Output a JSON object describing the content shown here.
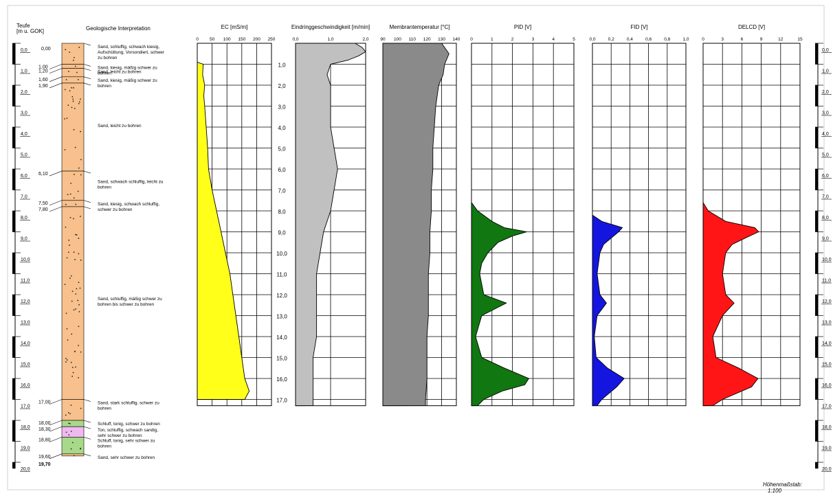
{
  "header": {
    "depth_title": "Teufe",
    "depth_unit": "[m u. GOK]",
    "geo_title": "Geologische Interpretation"
  },
  "scale_note": {
    "label": "Höhenmaßstab:",
    "value": "1:100"
  },
  "depth_ticks": [
    "0,0",
    "1,0",
    "2,0",
    "3,0",
    "4,0",
    "5,0",
    "6,0",
    "7,0",
    "8,0",
    "9,0",
    "10,0",
    "11,0",
    "12,0",
    "13,0",
    "14,0",
    "15,0",
    "16,0",
    "17,0",
    "18,0",
    "19,0",
    "20,0"
  ],
  "center_ticks": [
    "1,0",
    "2,0",
    "3,0",
    "4,0",
    "5,0",
    "6,0",
    "7,0",
    "8,0",
    "9,0",
    "10,0",
    "11,0",
    "12,0",
    "13,0",
    "14,0",
    "15,0",
    "16,0",
    "17,0"
  ],
  "layers": [
    {
      "top": "0,00",
      "bottom": "1,00",
      "desc": "Sand, schluffig, schwach kiesig, Aufschüttung, Vorsondiert, schwer zu bohren",
      "fill": "#f7c08c"
    },
    {
      "top": "1,00",
      "bottom": "1,20",
      "desc": "Sand, kiesig, mäßig schwer zu bohren",
      "fill": "#f7c08c"
    },
    {
      "top": "1,20",
      "bottom": "1,60",
      "desc": "Sand, leicht zu bohren",
      "fill": "#f7c08c"
    },
    {
      "top": "1,60",
      "bottom": "1,90",
      "desc": "Sand, kiesig, mäßig schwer zu bohren",
      "fill": "#f7c08c"
    },
    {
      "top": "1,90",
      "bottom": "6,10",
      "desc": "Sand, leicht zu bohren",
      "fill": "#f7c08c"
    },
    {
      "top": "6,10",
      "bottom": "7,50",
      "desc": "Sand, schwach schluffig, leicht zu bohren",
      "fill": "#f7c08c"
    },
    {
      "top": "7,50",
      "bottom": "7,80",
      "desc": "Sand, kiesig, schwach schluffig, schwer zu bohren",
      "fill": "#f7c08c"
    },
    {
      "top": "7,80",
      "bottom": "17,00",
      "desc": "Sand, schluffig, mäßig schwer zu bohren bis schwer zu bohren",
      "fill": "#f7c08c"
    },
    {
      "top": "17,00",
      "bottom": "18,00",
      "desc": "Sand, stark schluffig, schwer zu bohren",
      "fill": "#f7c08c"
    },
    {
      "top": "18,00",
      "bottom": "18,30",
      "desc": "Schluff, tonig, schwer zu bohren",
      "fill": "#a8d88a"
    },
    {
      "top": "18,30",
      "bottom": "18,80",
      "desc": "Ton, schluffig, schwach sandig, sehr schwer zu bohren",
      "fill": "#f0b8f0"
    },
    {
      "top": "18,80",
      "bottom": "19,60",
      "desc": "Schluff, tonig, sehr schwer zu bohren",
      "fill": "#a8d88a"
    },
    {
      "top": "19,60",
      "bottom": "19,70",
      "desc": "Sand, sehr schwer zu bohren",
      "fill": "#f7c08c"
    }
  ],
  "final_depth": "19,70",
  "colors": {
    "ec": "#ffff1a",
    "speed": "#c0c0c0",
    "temp": "#8a8a8a",
    "pid": "#117711",
    "fid": "#1515e0",
    "delcd": "#ff1515",
    "sand": "#f7c08c",
    "silt": "#a8d88a",
    "clay": "#f0b8f0"
  },
  "chart_data": [
    {
      "type": "area",
      "id": "ec",
      "title": "EC [mS/m]",
      "xlim": [
        0,
        250
      ],
      "xticks": [
        "0",
        "50",
        "100",
        "150",
        "200",
        "250"
      ],
      "depth": [
        0.9,
        1.0,
        1.5,
        2.0,
        2.5,
        3.0,
        4.0,
        5.0,
        6.0,
        7.0,
        8.0,
        9.0,
        10.0,
        11.0,
        12.0,
        13.0,
        14.0,
        15.0,
        16.0,
        16.6,
        17.0
      ],
      "values": [
        0,
        20,
        18,
        25,
        22,
        25,
        30,
        35,
        38,
        50,
        65,
        80,
        95,
        110,
        120,
        130,
        140,
        150,
        160,
        175,
        160
      ]
    },
    {
      "type": "area",
      "id": "speed",
      "title": "Eindringgeschwindigkeit [m/min]",
      "xlim": [
        0,
        2.0
      ],
      "xticks": [
        "0,0",
        "1,0",
        "2,0"
      ],
      "depth": [
        0.0,
        0.2,
        0.4,
        0.6,
        0.8,
        1.0,
        1.5,
        2.0,
        3.0,
        4.0,
        5.0,
        6.0,
        7.0,
        8.0,
        9.0,
        10.0,
        11.0,
        12.0,
        13.0,
        14.0,
        15.0,
        16.0,
        17.0,
        17.3
      ],
      "values": [
        1.7,
        1.9,
        2.0,
        1.8,
        1.5,
        1.0,
        0.9,
        1.0,
        1.0,
        1.0,
        1.1,
        1.2,
        1.1,
        1.0,
        0.8,
        0.7,
        0.6,
        0.6,
        0.6,
        0.6,
        0.5,
        0.5,
        0.5,
        0.5
      ]
    },
    {
      "type": "area",
      "id": "temp",
      "title": "Membrantemperatur [°C]",
      "xlim": [
        90,
        140
      ],
      "xticks": [
        "90",
        "100",
        "110",
        "120",
        "130",
        "140"
      ],
      "depth": [
        0.0,
        0.5,
        1.0,
        1.5,
        2.0,
        3.0,
        4.0,
        5.0,
        6.0,
        7.0,
        8.0,
        9.0,
        10.0,
        11.0,
        12.0,
        13.0,
        14.0,
        15.0,
        16.0,
        17.0,
        17.3
      ],
      "values": [
        130,
        135,
        132,
        131,
        128,
        126,
        125,
        124,
        124,
        123,
        123,
        122,
        122,
        121,
        121,
        121,
        120,
        120,
        120,
        119,
        119
      ]
    },
    {
      "type": "area",
      "id": "pid",
      "title": "PID  [V]",
      "xlim": [
        0,
        5
      ],
      "xticks": [
        "0",
        "1",
        "2",
        "3",
        "4",
        "5"
      ],
      "depth": [
        7.6,
        8.0,
        8.5,
        8.8,
        9.0,
        9.2,
        9.5,
        10.0,
        10.5,
        11.0,
        12.0,
        12.4,
        13.0,
        14.0,
        15.0,
        15.5,
        16.0,
        16.3,
        16.6,
        17.0,
        17.3
      ],
      "values": [
        0,
        0.3,
        1.0,
        1.6,
        2.7,
        2.0,
        1.3,
        0.8,
        0.5,
        0.4,
        0.6,
        1.7,
        0.5,
        0.2,
        0.5,
        1.6,
        2.8,
        2.6,
        1.5,
        0.6,
        0.3
      ]
    },
    {
      "type": "area",
      "id": "fid",
      "title": "FID  [V]",
      "xlim": [
        0,
        1.0
      ],
      "xticks": [
        "0,0",
        "0,2",
        "0,4",
        "0,6",
        "0,8",
        "1,0"
      ],
      "depth": [
        8.2,
        8.5,
        8.8,
        9.0,
        9.3,
        9.6,
        10.0,
        11.0,
        12.0,
        12.4,
        13.0,
        14.0,
        15.0,
        15.5,
        16.0,
        16.4,
        17.0,
        17.3
      ],
      "values": [
        0,
        0.1,
        0.32,
        0.28,
        0.2,
        0.12,
        0.08,
        0.05,
        0.08,
        0.15,
        0.05,
        0.02,
        0.04,
        0.16,
        0.34,
        0.26,
        0.1,
        0.05
      ]
    },
    {
      "type": "area",
      "id": "delcd",
      "title": "DELCD  [V]",
      "xlim": [
        0,
        15
      ],
      "xticks": [
        "0",
        "3",
        "6",
        "9",
        "12",
        "15"
      ],
      "depth": [
        7.6,
        8.0,
        8.5,
        8.8,
        9.0,
        9.3,
        9.6,
        10.0,
        11.0,
        12.0,
        12.4,
        13.0,
        14.0,
        15.0,
        15.5,
        16.0,
        16.4,
        17.0,
        17.3
      ],
      "values": [
        0,
        0.8,
        3.5,
        8,
        8.6,
        6.5,
        4.5,
        3.5,
        3.0,
        3.5,
        4.8,
        3.0,
        1.5,
        2.0,
        5.5,
        8.5,
        7.5,
        3.0,
        1.5
      ]
    }
  ]
}
